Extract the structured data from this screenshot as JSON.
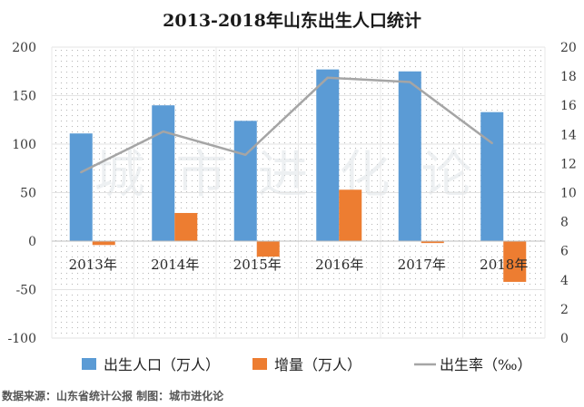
{
  "chart_data": {
    "type": "bar",
    "title": "2013-2018年山东出生人口统计",
    "categories": [
      "2013年",
      "2014年",
      "2015年",
      "2016年",
      "2017年",
      "2018年"
    ],
    "series": [
      {
        "name": "出生人口（万人）",
        "kind": "bar",
        "axis": "left",
        "color": "#5b9bd5",
        "values": [
          111,
          140,
          124,
          177,
          175,
          133
        ]
      },
      {
        "name": "增量（万人）",
        "kind": "bar",
        "axis": "left",
        "color": "#ed7d31",
        "values": [
          -4,
          29,
          -16,
          53,
          -2,
          -42
        ]
      },
      {
        "name": "出生率（‰）",
        "kind": "line",
        "axis": "right",
        "color": "#a5a5a5",
        "values": [
          11.4,
          14.2,
          12.6,
          17.9,
          17.6,
          13.4
        ]
      }
    ],
    "y_left": {
      "min": -100,
      "max": 200,
      "ticks": [
        -100,
        -50,
        0,
        50,
        100,
        150,
        200
      ]
    },
    "y_right": {
      "min": 0,
      "max": 20,
      "ticks": [
        0,
        2,
        4,
        6,
        8,
        10,
        12,
        14,
        16,
        18,
        20
      ]
    },
    "legend_position": "bottom",
    "watermark": "城市进化论"
  },
  "source_note": "数据来源：山东省统计公报 制图：城市进化论"
}
